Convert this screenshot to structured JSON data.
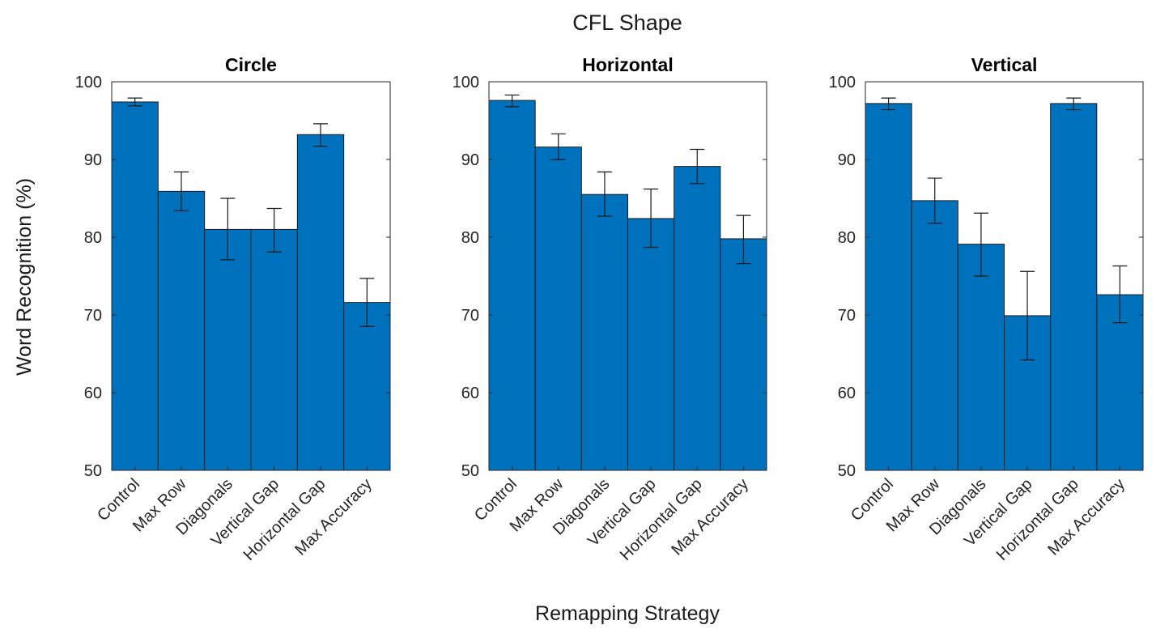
{
  "figure": {
    "suptitle": "CFL Shape",
    "xlabel": "Remapping Strategy",
    "ylabel": "Word Recognition (%)"
  },
  "chart_data": [
    {
      "type": "bar",
      "title": "Circle",
      "categories": [
        "Control",
        "Max Row",
        "Diagonals",
        "Vertical Gap",
        "Horizontal Gap",
        "Max Accuracy"
      ],
      "values": [
        97.4,
        85.9,
        81.0,
        81.0,
        93.2,
        71.6
      ],
      "error_low": [
        96.9,
        83.4,
        77.1,
        78.1,
        91.7,
        68.5
      ],
      "error_high": [
        97.9,
        88.4,
        85.0,
        83.7,
        94.6,
        74.7
      ],
      "ylim": [
        50,
        100
      ],
      "yticks": [
        50,
        60,
        70,
        80,
        90,
        100
      ],
      "bar_color": "#0072BD",
      "grid": false
    },
    {
      "type": "bar",
      "title": "Horizontal",
      "categories": [
        "Control",
        "Max Row",
        "Diagonals",
        "Vertical Gap",
        "Horizontal Gap",
        "Max Accuracy"
      ],
      "values": [
        97.6,
        91.6,
        85.5,
        82.4,
        89.1,
        79.8
      ],
      "error_low": [
        96.8,
        90.0,
        82.7,
        78.7,
        86.9,
        76.6
      ],
      "error_high": [
        98.3,
        93.3,
        88.4,
        86.2,
        91.3,
        82.8
      ],
      "ylim": [
        50,
        100
      ],
      "yticks": [
        50,
        60,
        70,
        80,
        90,
        100
      ],
      "bar_color": "#0072BD",
      "grid": false
    },
    {
      "type": "bar",
      "title": "Vertical",
      "categories": [
        "Control",
        "Max Row",
        "Diagonals",
        "Vertical Gap",
        "Horizontal Gap",
        "Max Accuracy"
      ],
      "values": [
        97.2,
        84.7,
        79.1,
        69.9,
        97.2,
        72.6
      ],
      "error_low": [
        96.4,
        81.8,
        75.0,
        64.2,
        96.4,
        69.0
      ],
      "error_high": [
        97.9,
        87.6,
        83.1,
        75.6,
        97.9,
        76.3
      ],
      "ylim": [
        50,
        100
      ],
      "yticks": [
        50,
        60,
        70,
        80,
        90,
        100
      ],
      "bar_color": "#0072BD",
      "grid": false
    }
  ]
}
